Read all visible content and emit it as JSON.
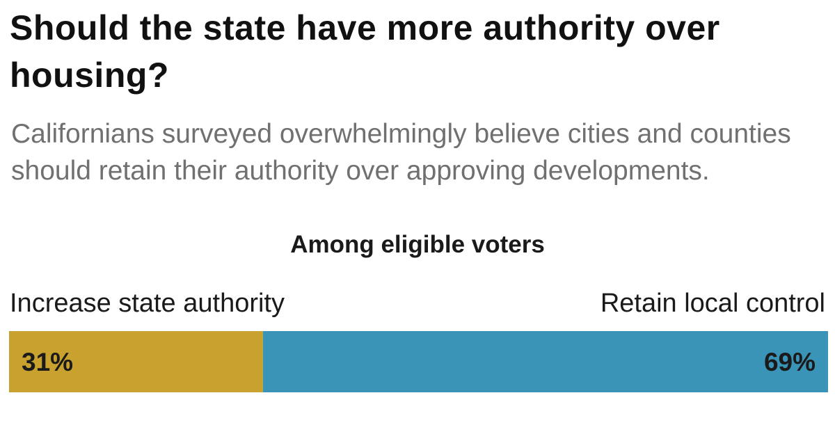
{
  "headline": "Should the state have more authority over housing?",
  "subtitle": "Californians surveyed overwhelmingly believe cities and counties should retain their authority over approving developments.",
  "chart_data": {
    "type": "bar",
    "orientation": "horizontal-stacked",
    "title": "Among eligible voters",
    "unit": "%",
    "series": [
      {
        "name": "Increase state authority",
        "value": 31,
        "label": "31%",
        "color": "#c9a12e"
      },
      {
        "name": "Retain local control",
        "value": 69,
        "label": "69%",
        "color": "#3a94b7"
      }
    ],
    "total": 100
  }
}
